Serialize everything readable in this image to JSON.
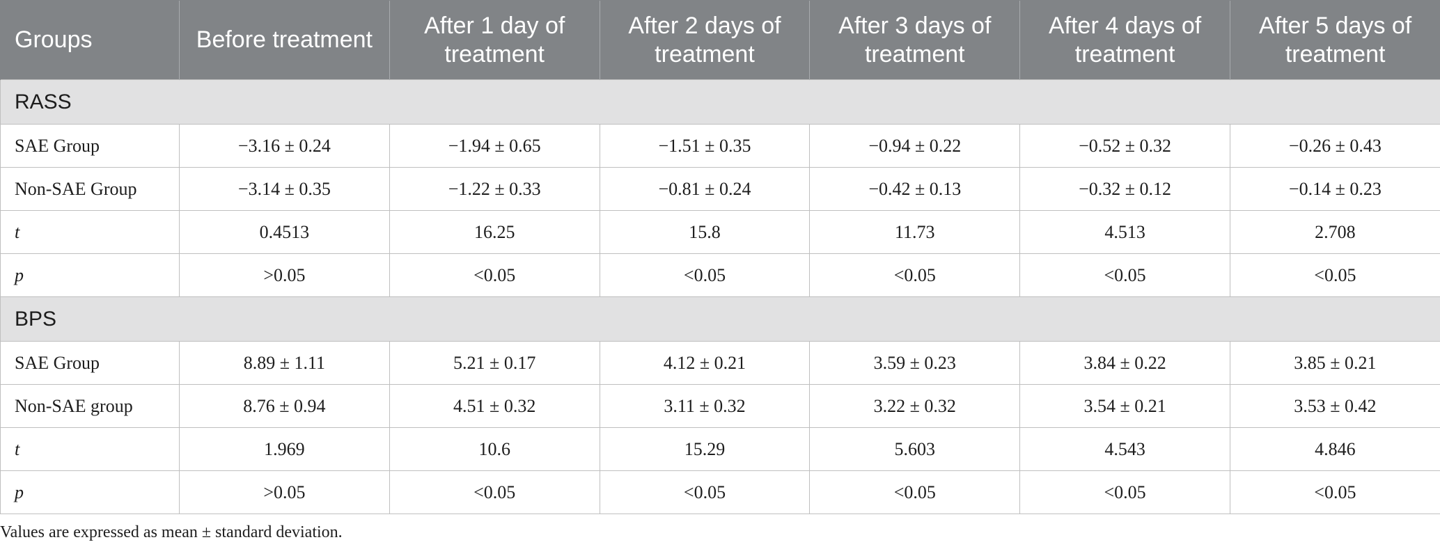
{
  "table": {
    "header": [
      "Groups",
      "Before treatment",
      "After 1 day of treatment",
      "After 2 days of treatment",
      "After 3 days of treatment",
      "After 4 days of treatment",
      "After 5 days of treatment"
    ],
    "sections": [
      {
        "title": "RASS",
        "rows": [
          {
            "label": "SAE Group",
            "values": [
              "−3.16 ± 0.24",
              "−1.94 ± 0.65",
              "−1.51 ± 0.35",
              "−0.94 ± 0.22",
              "−0.52 ± 0.32",
              "−0.26 ± 0.43"
            ]
          },
          {
            "label": "Non-SAE Group",
            "values": [
              "−3.14 ± 0.35",
              "−1.22 ± 0.33",
              "−0.81 ± 0.24",
              "−0.42 ± 0.13",
              "−0.32 ± 0.12",
              "−0.14 ± 0.23"
            ]
          },
          {
            "label": "t",
            "values": [
              "0.4513",
              "16.25",
              "15.8",
              "11.73",
              "4.513",
              "2.708"
            ]
          },
          {
            "label": "p",
            "values": [
              ">0.05",
              "<0.05",
              "<0.05",
              "<0.05",
              "<0.05",
              "<0.05"
            ]
          }
        ]
      },
      {
        "title": "BPS",
        "rows": [
          {
            "label": "SAE Group",
            "values": [
              "8.89 ± 1.11",
              "5.21 ± 0.17",
              "4.12 ± 0.21",
              "3.59 ± 0.23",
              "3.84 ± 0.22",
              "3.85 ± 0.21"
            ]
          },
          {
            "label": "Non-SAE group",
            "values": [
              "8.76 ± 0.94",
              "4.51 ± 0.32",
              "3.11 ± 0.32",
              "3.22 ± 0.32",
              "3.54 ± 0.21",
              "3.53 ± 0.42"
            ]
          },
          {
            "label": "t",
            "values": [
              "1.969",
              "10.6",
              "15.29",
              "5.603",
              "4.543",
              "4.846"
            ]
          },
          {
            "label": "p",
            "values": [
              ">0.05",
              "<0.05",
              "<0.05",
              "<0.05",
              "<0.05",
              "<0.05"
            ]
          }
        ]
      }
    ]
  },
  "footnote": "Values are expressed as mean ± standard deviation."
}
